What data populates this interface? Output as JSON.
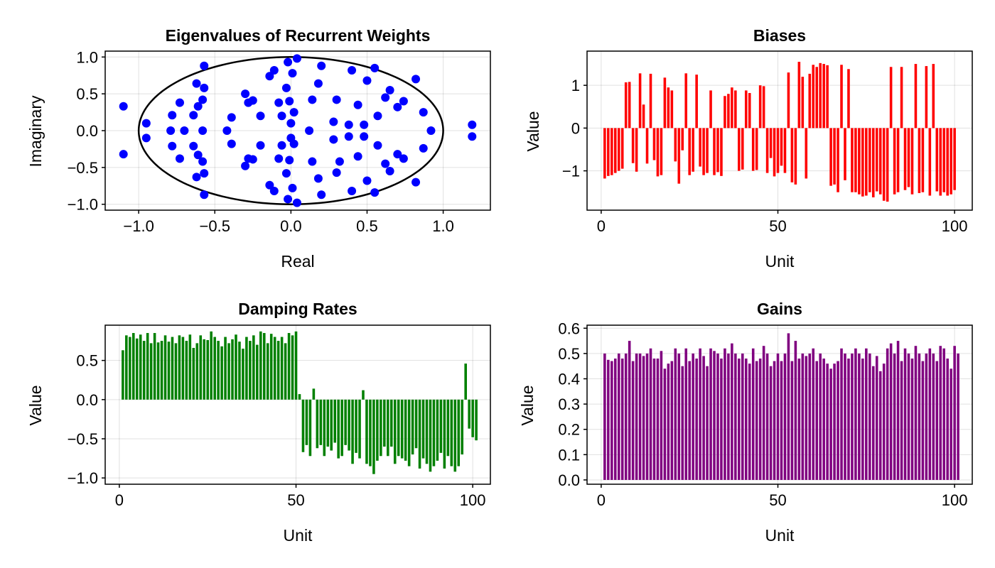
{
  "chart_data": [
    {
      "type": "scatter",
      "title": "Eigenvalues of Recurrent Weights",
      "xlabel": "Real",
      "ylabel": "Imaginary",
      "xlim": [
        -1.22,
        1.31
      ],
      "ylim": [
        -1.08,
        1.08
      ],
      "xticks": [
        -1.0,
        -0.5,
        0.0,
        0.5,
        1.0
      ],
      "xtick_labels": [
        "−1.0",
        "−0.5",
        "0.0",
        "0.5",
        "1.0"
      ],
      "yticks": [
        -1.0,
        -0.5,
        0.0,
        0.5,
        1.0
      ],
      "ytick_labels": [
        "−1.0",
        "−0.5",
        "0.0",
        "0.5",
        "1.0"
      ],
      "grid": true,
      "point_color": "#0000ff",
      "circle": {
        "center": [
          0,
          0
        ],
        "radius": 1.0,
        "color": "#000000"
      },
      "points": [
        [
          -1.1,
          0.33
        ],
        [
          -1.1,
          -0.32
        ],
        [
          -0.95,
          0.1
        ],
        [
          -0.95,
          -0.1
        ],
        [
          -0.78,
          0.21
        ],
        [
          -0.78,
          -0.21
        ],
        [
          -0.79,
          0.0
        ],
        [
          -0.73,
          0.38
        ],
        [
          -0.73,
          -0.38
        ],
        [
          -0.7,
          0.0
        ],
        [
          -0.62,
          0.64
        ],
        [
          -0.62,
          -0.63
        ],
        [
          -0.64,
          0.21
        ],
        [
          -0.64,
          -0.21
        ],
        [
          -0.61,
          0.33
        ],
        [
          -0.61,
          -0.33
        ],
        [
          -0.57,
          0.88
        ],
        [
          -0.57,
          -0.87
        ],
        [
          -0.57,
          0.58
        ],
        [
          -0.57,
          -0.58
        ],
        [
          -0.58,
          0.42
        ],
        [
          -0.58,
          -0.42
        ],
        [
          -0.58,
          0.0
        ],
        [
          -0.42,
          0.0
        ],
        [
          -0.39,
          0.18
        ],
        [
          -0.39,
          -0.18
        ],
        [
          -0.3,
          0.5
        ],
        [
          -0.3,
          -0.48
        ],
        [
          -0.28,
          0.38
        ],
        [
          -0.28,
          -0.38
        ],
        [
          -0.25,
          0.41
        ],
        [
          -0.25,
          -0.39
        ],
        [
          -0.2,
          0.2
        ],
        [
          -0.2,
          -0.2
        ],
        [
          -0.14,
          0.74
        ],
        [
          -0.14,
          -0.74
        ],
        [
          -0.11,
          0.82
        ],
        [
          -0.11,
          -0.82
        ],
        [
          -0.08,
          0.38
        ],
        [
          -0.08,
          -0.38
        ],
        [
          -0.06,
          0.2
        ],
        [
          -0.06,
          -0.2
        ],
        [
          -0.03,
          0.58
        ],
        [
          -0.03,
          -0.58
        ],
        [
          -0.02,
          0.93
        ],
        [
          -0.02,
          -0.93
        ],
        [
          -0.01,
          0.4
        ],
        [
          -0.01,
          -0.4
        ],
        [
          0.0,
          0.1
        ],
        [
          0.0,
          -0.1
        ],
        [
          0.01,
          0.78
        ],
        [
          0.01,
          -0.78
        ],
        [
          0.02,
          0.25
        ],
        [
          0.02,
          -0.18
        ],
        [
          0.04,
          0.98
        ],
        [
          0.04,
          -0.98
        ],
        [
          0.12,
          0.0
        ],
        [
          0.14,
          0.42
        ],
        [
          0.14,
          -0.42
        ],
        [
          0.18,
          0.64
        ],
        [
          0.18,
          -0.65
        ],
        [
          0.2,
          0.88
        ],
        [
          0.2,
          -0.87
        ],
        [
          0.28,
          0.12
        ],
        [
          0.28,
          -0.12
        ],
        [
          0.3,
          0.42
        ],
        [
          0.3,
          -0.57
        ],
        [
          0.32,
          -0.42
        ],
        [
          0.38,
          0.08
        ],
        [
          0.38,
          -0.08
        ],
        [
          0.4,
          0.82
        ],
        [
          0.4,
          -0.82
        ],
        [
          0.44,
          0.35
        ],
        [
          0.44,
          -0.35
        ],
        [
          0.48,
          0.08
        ],
        [
          0.48,
          -0.08
        ],
        [
          0.5,
          0.68
        ],
        [
          0.5,
          -0.68
        ],
        [
          0.55,
          0.85
        ],
        [
          0.55,
          -0.84
        ],
        [
          0.57,
          0.2
        ],
        [
          0.57,
          -0.2
        ],
        [
          0.62,
          0.45
        ],
        [
          0.62,
          -0.45
        ],
        [
          0.65,
          0.55
        ],
        [
          0.65,
          -0.55
        ],
        [
          0.7,
          0.32
        ],
        [
          0.7,
          -0.32
        ],
        [
          0.74,
          0.4
        ],
        [
          0.74,
          -0.38
        ],
        [
          0.82,
          0.7
        ],
        [
          0.82,
          -0.7
        ],
        [
          0.87,
          0.25
        ],
        [
          0.87,
          -0.24
        ],
        [
          0.92,
          0.0
        ],
        [
          1.19,
          0.08
        ],
        [
          1.19,
          -0.08
        ]
      ]
    },
    {
      "type": "bar",
      "title": "Biases",
      "xlabel": "Unit",
      "ylabel": "Value",
      "xlim": [
        -4,
        105
      ],
      "ylim": [
        -1.92,
        1.8
      ],
      "xticks": [
        0,
        50,
        100
      ],
      "xtick_labels": [
        "0",
        "50",
        "100"
      ],
      "yticks": [
        -1,
        0,
        1
      ],
      "ytick_labels": [
        "−1",
        "0",
        "1"
      ],
      "grid": true,
      "color": "#ff0000",
      "x_start": 1,
      "values": [
        -1.18,
        -1.12,
        -1.1,
        -1.05,
        -1.0,
        -0.95,
        1.07,
        1.08,
        -0.82,
        -1.02,
        1.28,
        0.55,
        -0.83,
        1.27,
        -0.75,
        -1.13,
        -1.1,
        1.18,
        0.95,
        0.88,
        -0.78,
        -1.3,
        -0.52,
        1.28,
        -1.1,
        -1.02,
        1.25,
        -0.9,
        -1.1,
        -1.05,
        0.88,
        -1.1,
        -1.03,
        -1.12,
        0.75,
        0.8,
        0.95,
        0.88,
        -1.0,
        -0.97,
        0.88,
        0.82,
        -1.0,
        -0.98,
        1.0,
        0.98,
        -1.05,
        -0.7,
        -1.13,
        -1.05,
        -0.88,
        -1.05,
        1.3,
        -1.27,
        -1.32,
        1.55,
        1.2,
        -1.18,
        1.27,
        1.48,
        1.43,
        1.52,
        1.5,
        1.47,
        -1.35,
        -1.32,
        -1.5,
        1.48,
        -1.22,
        1.38,
        -1.5,
        -1.5,
        -1.55,
        -1.6,
        -1.58,
        -1.5,
        -1.62,
        -1.48,
        -1.55,
        -1.7,
        -1.72,
        1.43,
        -1.55,
        -1.5,
        1.43,
        -1.45,
        -1.38,
        -1.55,
        1.5,
        -1.52,
        -1.5,
        1.45,
        -1.58,
        1.5,
        -1.48,
        -1.58,
        -1.5,
        -1.58,
        -1.55,
        -1.45
      ]
    },
    {
      "type": "bar",
      "title": "Damping Rates",
      "xlabel": "Unit",
      "ylabel": "Value",
      "xlim": [
        -4,
        105
      ],
      "ylim": [
        -1.08,
        0.95
      ],
      "xticks": [
        0,
        50,
        100
      ],
      "xtick_labels": [
        "0",
        "50",
        "100"
      ],
      "yticks": [
        -1.0,
        -0.5,
        0.0,
        0.5
      ],
      "ytick_labels": [
        "−1.0",
        "−0.5",
        "0.0",
        "0.5"
      ],
      "grid": true,
      "color": "#008000",
      "x_start": 1,
      "values": [
        0.63,
        0.82,
        0.8,
        0.85,
        0.78,
        0.83,
        0.75,
        0.85,
        0.72,
        0.85,
        0.73,
        0.75,
        0.82,
        0.74,
        0.8,
        0.72,
        0.82,
        0.8,
        0.75,
        0.83,
        0.66,
        0.72,
        0.82,
        0.77,
        0.76,
        0.87,
        0.8,
        0.75,
        0.68,
        0.8,
        0.72,
        0.77,
        0.83,
        0.74,
        0.65,
        0.8,
        0.75,
        0.82,
        0.7,
        0.87,
        0.85,
        0.72,
        0.84,
        0.8,
        0.75,
        0.8,
        0.72,
        0.85,
        0.82,
        0.87,
        0.07,
        -0.67,
        -0.58,
        -0.72,
        0.14,
        -0.62,
        -0.58,
        -0.72,
        -0.6,
        -0.65,
        -0.55,
        -0.75,
        -0.72,
        -0.58,
        -0.65,
        -0.82,
        -0.68,
        -0.75,
        0.12,
        -0.82,
        -0.85,
        -0.95,
        -0.78,
        -0.72,
        -0.6,
        -0.72,
        -0.6,
        -0.82,
        -0.72,
        -0.75,
        -0.78,
        -0.85,
        -0.7,
        -0.62,
        -0.88,
        -0.75,
        -0.82,
        -0.92,
        -0.85,
        -0.78,
        -0.68,
        -0.88,
        -0.72,
        -0.85,
        -0.92,
        -0.85,
        -0.7,
        0.46,
        -0.37,
        -0.48,
        -0.52
      ]
    },
    {
      "type": "bar",
      "title": "Gains",
      "xlabel": "Unit",
      "ylabel": "Value",
      "xlim": [
        -4,
        105
      ],
      "ylim": [
        -0.017,
        0.612
      ],
      "xticks": [
        0,
        50,
        100
      ],
      "xtick_labels": [
        "0",
        "50",
        "100"
      ],
      "yticks": [
        0.0,
        0.1,
        0.2,
        0.3,
        0.4,
        0.5,
        0.6
      ],
      "ytick_labels": [
        "0.0",
        "0.1",
        "0.2",
        "0.3",
        "0.4",
        "0.5",
        "0.6"
      ],
      "grid": true,
      "color": "#800080",
      "x_start": 1,
      "values": [
        0.5,
        0.475,
        0.47,
        0.48,
        0.5,
        0.48,
        0.5,
        0.55,
        0.47,
        0.5,
        0.5,
        0.49,
        0.5,
        0.52,
        0.48,
        0.48,
        0.51,
        0.44,
        0.46,
        0.47,
        0.52,
        0.5,
        0.45,
        0.52,
        0.47,
        0.5,
        0.48,
        0.52,
        0.49,
        0.45,
        0.52,
        0.51,
        0.5,
        0.48,
        0.52,
        0.5,
        0.54,
        0.5,
        0.48,
        0.5,
        0.48,
        0.46,
        0.52,
        0.47,
        0.48,
        0.53,
        0.5,
        0.45,
        0.47,
        0.5,
        0.47,
        0.5,
        0.58,
        0.47,
        0.55,
        0.48,
        0.5,
        0.49,
        0.5,
        0.52,
        0.47,
        0.5,
        0.48,
        0.46,
        0.44,
        0.46,
        0.47,
        0.52,
        0.5,
        0.48,
        0.5,
        0.52,
        0.5,
        0.48,
        0.52,
        0.5,
        0.45,
        0.49,
        0.43,
        0.46,
        0.52,
        0.54,
        0.5,
        0.55,
        0.47,
        0.52,
        0.5,
        0.48,
        0.53,
        0.5,
        0.47,
        0.5,
        0.52,
        0.5,
        0.47,
        0.53,
        0.52,
        0.48,
        0.44,
        0.53,
        0.5
      ]
    }
  ]
}
